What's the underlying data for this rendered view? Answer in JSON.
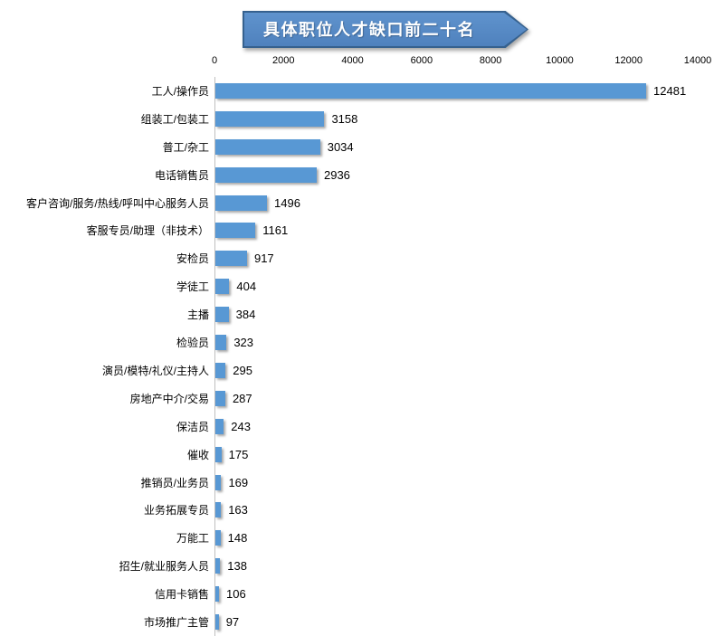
{
  "chart_data": {
    "type": "bar",
    "orientation": "horizontal",
    "title": "具体职位人才缺口前二十名",
    "categories": [
      "工人/操作员",
      "组装工/包装工",
      "普工/杂工",
      "电话销售员",
      "客户咨询/服务/热线/呼叫中心服务人员",
      "客服专员/助理（非技术）",
      "安检员",
      "学徒工",
      "主播",
      "检验员",
      "演员/模特/礼仪/主持人",
      "房地产中介/交易",
      "保洁员",
      "催收",
      "推销员/业务员",
      "业务拓展专员",
      "万能工",
      "招生/就业服务人员",
      "信用卡销售",
      "市场推广主管"
    ],
    "values": [
      12481,
      3158,
      3034,
      2936,
      1496,
      1161,
      917,
      404,
      384,
      323,
      295,
      287,
      243,
      175,
      169,
      163,
      148,
      138,
      106,
      97
    ],
    "xlabel": "",
    "ylabel": "",
    "xlim": [
      0,
      14000
    ],
    "xticks": [
      0,
      2000,
      4000,
      6000,
      8000,
      10000,
      12000,
      14000
    ],
    "axis_position": "top",
    "grid": "off",
    "legend": "none",
    "value_labels_shown": true
  },
  "colors": {
    "bar_fill": "#5898d4",
    "banner_fill": "#4f81bd",
    "banner_border": "#36618e",
    "title_text": "#ffffff",
    "axis_line": "#bfbfbf",
    "label_text": "#000000",
    "background": "#ffffff"
  }
}
